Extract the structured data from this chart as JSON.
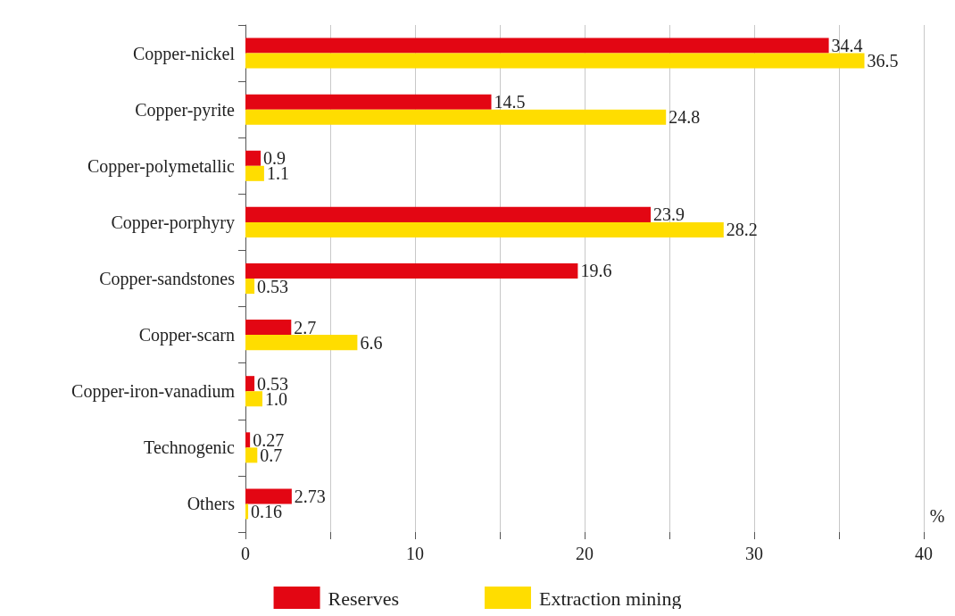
{
  "chart_data": {
    "type": "bar",
    "orientation": "horizontal",
    "xlabel": "%",
    "categories": [
      "Copper-nickel",
      "Copper-pyrite",
      "Copper-polymetallic",
      "Copper-porphyry",
      "Copper-sandstones",
      "Copper-scarn",
      "Copper-iron-vanadium",
      "Technogenic",
      "Others"
    ],
    "series": [
      {
        "name": "Reserves",
        "color": "#e30613",
        "values": [
          34.4,
          14.5,
          0.9,
          23.9,
          19.6,
          2.7,
          0.53,
          0.27,
          2.73
        ],
        "value_labels": [
          "34.4",
          "14.5",
          "0.9",
          "23.9",
          "19.6",
          "2.7",
          "0.53",
          "0.27",
          "2.73"
        ]
      },
      {
        "name": "Extraction mining",
        "color": "#ffdd00",
        "values": [
          36.5,
          24.8,
          1.1,
          28.2,
          0.53,
          6.6,
          1.0,
          0.7,
          0.16
        ],
        "value_labels": [
          "36.5",
          "24.8",
          "1.1",
          "28.2",
          "0.53",
          "6.6",
          "1.0",
          "0.7",
          "0.16"
        ]
      }
    ],
    "xlim": [
      0,
      40
    ],
    "xticks": [
      0,
      {
        "value": 5,
        "label": null
      },
      10,
      {
        "value": 15,
        "label": null
      },
      20,
      {
        "value": 25,
        "label": null
      },
      30,
      {
        "value": 35,
        "label": null
      },
      40
    ],
    "grid": "x",
    "legend": "bottom"
  }
}
